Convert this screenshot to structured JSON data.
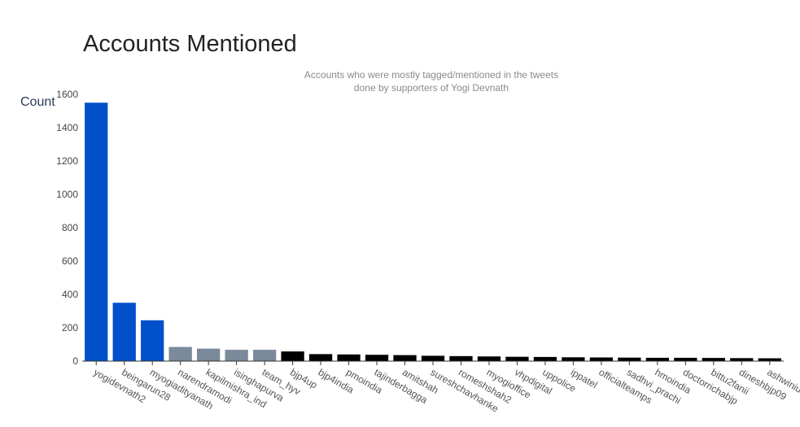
{
  "chart_data": {
    "type": "bar",
    "title": "Accounts Mentioned",
    "subtitle_lines": [
      "Accounts who were mostly tagged/mentioned in the tweets",
      "done by supporters of Yogi Devnath"
    ],
    "xlabel": "",
    "ylabel": "Count",
    "ylim": [
      0,
      1600
    ],
    "yticks": [
      0,
      200,
      400,
      600,
      800,
      1000,
      1200,
      1400,
      1600
    ],
    "grid": false,
    "categories": [
      "yogidevnath2",
      "beingarun28",
      "myogiadityanath",
      "narendramodi",
      "kapilmishra_ind",
      "isinghapurva",
      "team_hyv",
      "bjp4up",
      "bjp4india",
      "pmoindia",
      "tajinderbagga",
      "amitshah",
      "sureshchavhanke",
      "romeshshah2",
      "myogioffice",
      "vhpdigital",
      "uppolice",
      "ippatel",
      "officialteamps",
      "sadhvi_prachi",
      "hmoindia",
      "doctorrichabjp",
      "bittu2fanii",
      "dineshbjp09",
      "ashwiniu"
    ],
    "values": [
      1550,
      350,
      245,
      85,
      75,
      68,
      68,
      58,
      42,
      40,
      38,
      36,
      32,
      30,
      28,
      26,
      25,
      23,
      22,
      21,
      20,
      20,
      19,
      18,
      17
    ],
    "bar_colors": [
      "#0050cc",
      "#0050cc",
      "#0050cc",
      "#7a8a9a",
      "#7a8a9a",
      "#7a8a9a",
      "#7a8a9a",
      "#000000",
      "#000000",
      "#000000",
      "#000000",
      "#000000",
      "#000000",
      "#000000",
      "#000000",
      "#000000",
      "#000000",
      "#000000",
      "#000000",
      "#000000",
      "#000000",
      "#000000",
      "#000000",
      "#000000",
      "#000000"
    ]
  }
}
